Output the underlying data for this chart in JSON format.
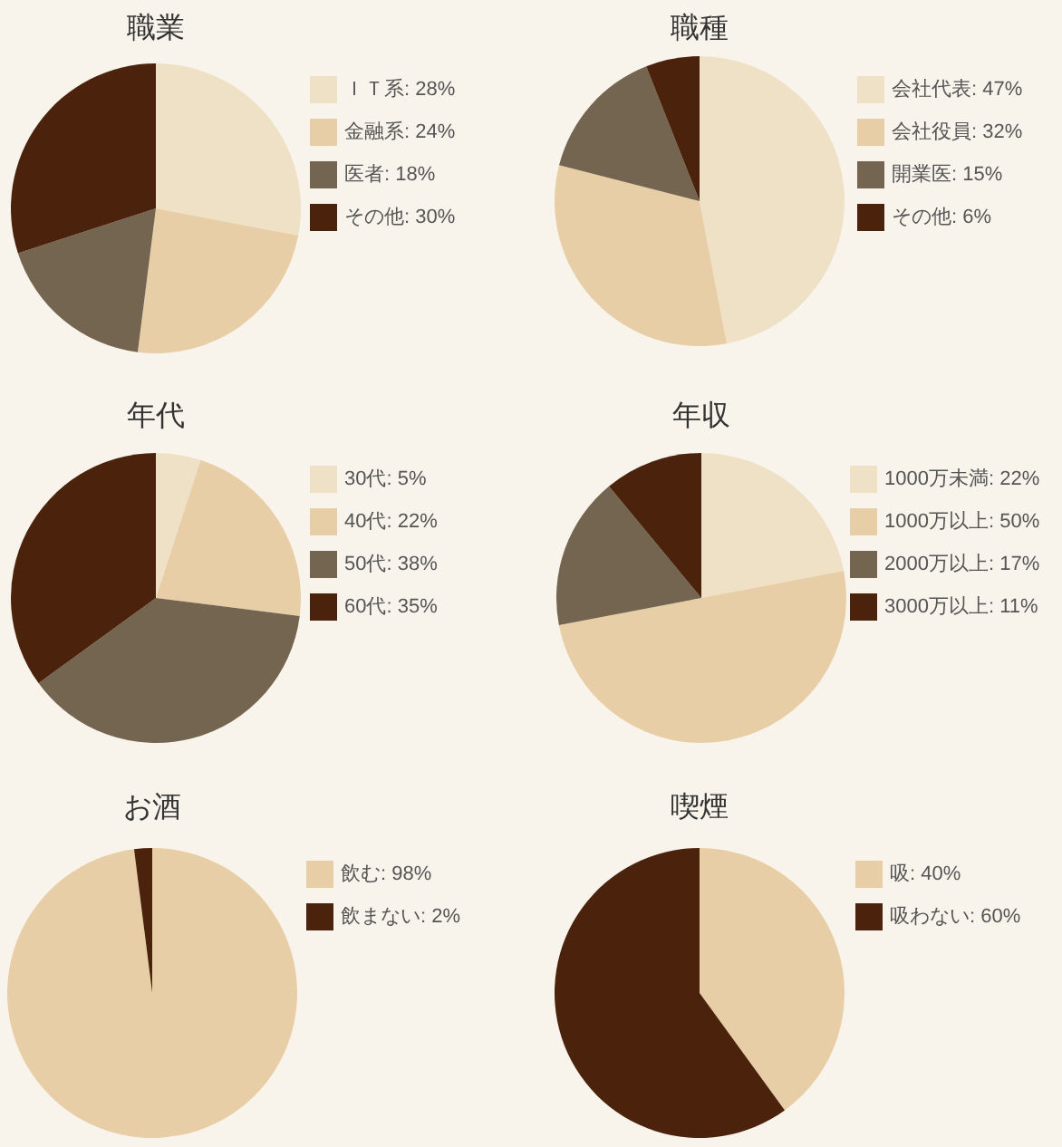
{
  "chart_data": [
    {
      "type": "pie",
      "title": "職業",
      "categories": [
        "ＩＴ系: 28%",
        "金融系: 24%",
        "医者: 18%",
        "その他: 30%"
      ],
      "values": [
        28,
        24,
        18,
        30
      ],
      "colors": [
        "#eee1c6",
        "#e8cea6",
        "#736550",
        "#4b220c"
      ],
      "legend": "right"
    },
    {
      "type": "pie",
      "title": "職種",
      "categories": [
        "会社代表: 47%",
        "会社役員: 32%",
        "開業医: 15%",
        "その他: 6%"
      ],
      "values": [
        47,
        32,
        15,
        6
      ],
      "colors": [
        "#eee1c6",
        "#e8cea6",
        "#736550",
        "#4b220c"
      ],
      "legend": "right"
    },
    {
      "type": "pie",
      "title": "年代",
      "categories": [
        "30代: 5%",
        "40代: 22%",
        "50代: 38%",
        "60代: 35%"
      ],
      "values": [
        5,
        22,
        38,
        35
      ],
      "colors": [
        "#eee1c6",
        "#e8cea6",
        "#736550",
        "#4b220c"
      ],
      "legend": "right"
    },
    {
      "type": "pie",
      "title": "年収",
      "categories": [
        "1000万未満: 22%",
        "1000万以上: 50%",
        "2000万以上: 17%",
        "3000万以上: 11%"
      ],
      "values": [
        22,
        50,
        17,
        11
      ],
      "colors": [
        "#eee1c6",
        "#e8cea6",
        "#736550",
        "#4b220c"
      ],
      "legend": "right"
    },
    {
      "type": "pie",
      "title": "お酒",
      "categories": [
        "飲む: 98%",
        "飲まない: 2%"
      ],
      "values": [
        98,
        2
      ],
      "colors": [
        "#e8cea6",
        "#4b220c"
      ],
      "legend": "right"
    },
    {
      "type": "pie",
      "title": "喫煙",
      "categories": [
        "吸: 40%",
        "吸わない: 60%"
      ],
      "values": [
        40,
        60
      ],
      "colors": [
        "#e8cea6",
        "#4b220c"
      ],
      "legend": "right"
    }
  ]
}
